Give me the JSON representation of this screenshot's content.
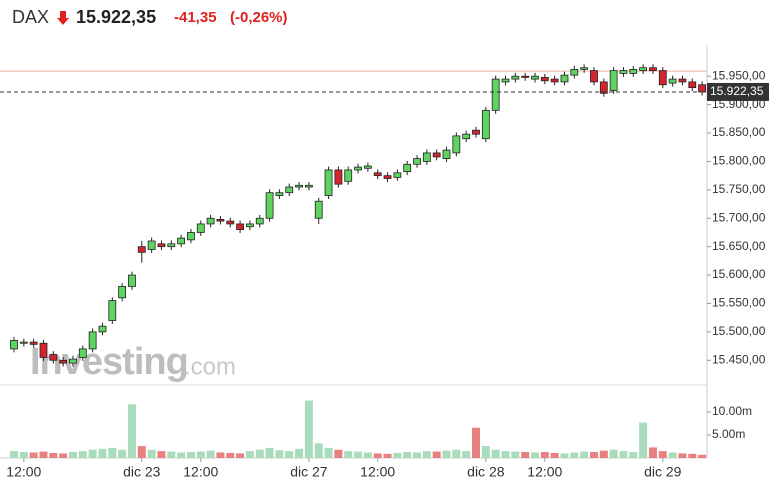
{
  "chart_data": {
    "type": "candlestick",
    "title": "DAX",
    "last_price": {
      "value": 15922.35,
      "label": "15.922,35"
    },
    "change": {
      "value": -41.35,
      "label": "-41,35"
    },
    "change_pct": {
      "value": -0.26,
      "label": "(-0,26%)"
    },
    "watermark": [
      "Investing",
      ".com"
    ],
    "categories": [
      null,
      "12:00",
      null,
      null,
      null,
      null,
      null,
      null,
      null,
      null,
      null,
      null,
      null,
      "dic 23",
      null,
      null,
      null,
      null,
      null,
      "12:00",
      null,
      null,
      null,
      null,
      null,
      null,
      null,
      null,
      null,
      null,
      "dic 27",
      null,
      null,
      null,
      null,
      null,
      null,
      "12:00",
      null,
      null,
      null,
      null,
      null,
      null,
      null,
      null,
      null,
      null,
      "dic 28",
      null,
      null,
      null,
      null,
      null,
      "12:00",
      null,
      null,
      null,
      null,
      null,
      null,
      null,
      null,
      null,
      null,
      null,
      "dic 29",
      null,
      null,
      null,
      null
    ],
    "open": [
      15470,
      15480,
      15482,
      15480,
      15460,
      15450,
      15445,
      15455,
      15470,
      15500,
      15520,
      15560,
      15580,
      15650,
      15645,
      15655,
      15650,
      15655,
      15662,
      15675,
      15690,
      15698,
      15695,
      15690,
      15685,
      15690,
      15700,
      15740,
      15745,
      15755,
      15755,
      15700,
      15740,
      15785,
      15765,
      15785,
      15788,
      15780,
      15775,
      15772,
      15782,
      15795,
      15800,
      15815,
      15805,
      15815,
      15840,
      15855,
      15840,
      15890,
      15940,
      15945,
      15950,
      15945,
      15948,
      15945,
      15940,
      15952,
      15962,
      15960,
      15940,
      15925,
      15955,
      15955,
      15960,
      15965,
      15960,
      15938,
      15945,
      15940,
      15935
    ],
    "high": [
      15491,
      15488,
      15488,
      15486,
      15466,
      15456,
      15458,
      15476,
      15506,
      15516,
      15561,
      15586,
      15606,
      15660,
      15666,
      15661,
      15661,
      15671,
      15681,
      15696,
      15706,
      15704,
      15701,
      15696,
      15696,
      15706,
      15751,
      15751,
      15761,
      15764,
      15764,
      15736,
      15791,
      15791,
      15791,
      15796,
      15798,
      15786,
      15781,
      15786,
      15801,
      15811,
      15821,
      15821,
      15826,
      15851,
      15854,
      15861,
      15896,
      15951,
      15951,
      15956,
      15956,
      15956,
      15954,
      15951,
      15958,
      15968,
      15971,
      15966,
      15946,
      15966,
      15966,
      15968,
      15971,
      15971,
      15966,
      15951,
      15951,
      15946,
      15941
    ],
    "low": [
      15464,
      15474,
      15472,
      15449,
      15444,
      15439,
      15439,
      15449,
      15464,
      15494,
      15514,
      15554,
      15574,
      15622,
      15639,
      15644,
      15644,
      15649,
      15656,
      15669,
      15684,
      15689,
      15684,
      15674,
      15679,
      15684,
      15694,
      15734,
      15739,
      15749,
      15749,
      15690,
      15734,
      15754,
      15759,
      15779,
      15782,
      15769,
      15764,
      15766,
      15776,
      15789,
      15794,
      15802,
      15799,
      15809,
      15834,
      15842,
      15834,
      15884,
      15934,
      15939,
      15942,
      15939,
      15936,
      15934,
      15934,
      15946,
      15956,
      15934,
      15914,
      15919,
      15949,
      15949,
      15954,
      15954,
      15929,
      15932,
      15934,
      15924,
      15916
    ],
    "close": [
      15485,
      15482,
      15478,
      15455,
      15450,
      15445,
      15452,
      15470,
      15500,
      15510,
      15555,
      15580,
      15600,
      15640,
      15660,
      15650,
      15655,
      15665,
      15675,
      15690,
      15700,
      15695,
      15690,
      15680,
      15690,
      15700,
      15745,
      15745,
      15755,
      15758,
      15758,
      15730,
      15785,
      15760,
      15785,
      15790,
      15792,
      15775,
      15770,
      15780,
      15795,
      15805,
      15815,
      15808,
      15820,
      15845,
      15848,
      15848,
      15890,
      15945,
      15945,
      15950,
      15948,
      15950,
      15942,
      15940,
      15952,
      15962,
      15965,
      15940,
      15920,
      15960,
      15960,
      15962,
      15965,
      15960,
      15935,
      15945,
      15940,
      15930,
      15922.35
    ],
    "volume": [
      1500000,
      1300000,
      1200000,
      1400000,
      1100000,
      1000000,
      1300000,
      1500000,
      1800000,
      2000000,
      2200000,
      1800000,
      11700000,
      2600000,
      1800000,
      1500000,
      1400000,
      1200000,
      1300000,
      1400000,
      1600000,
      1200000,
      1100000,
      1000000,
      1500000,
      1800000,
      2200000,
      1700000,
      1500000,
      2000000,
      12500000,
      3200000,
      2200000,
      1800000,
      1500000,
      1400000,
      1200000,
      1000000,
      900000,
      1100000,
      1300000,
      1200000,
      1500000,
      1400000,
      1600000,
      1800000,
      1500000,
      6600000,
      2600000,
      1800000,
      1500000,
      1400000,
      1300000,
      1200000,
      1300000,
      1100000,
      1000000,
      1200000,
      1400000,
      1300000,
      1600000,
      1800000,
      1500000,
      1300000,
      7700000,
      2300000,
      1500000,
      1200000,
      1000000,
      900000,
      700000
    ],
    "up_color": "#5fd35f",
    "down_color": "#d4252f",
    "volume_up_color": "#a9dcbd",
    "volume_down_color": "#e98080",
    "high_line": 15959,
    "ylim": [
      15410,
      16005
    ],
    "yticks": [
      {
        "value": 15450,
        "label": "15.450,00"
      },
      {
        "value": 15500,
        "label": "15.500,00"
      },
      {
        "value": 15550,
        "label": "15.550,00"
      },
      {
        "value": 15600,
        "label": "15.600,00"
      },
      {
        "value": 15650,
        "label": "15.650,00"
      },
      {
        "value": 15700,
        "label": "15.700,00"
      },
      {
        "value": 15750,
        "label": "15.750,00"
      },
      {
        "value": 15800,
        "label": "15.800,00"
      },
      {
        "value": 15850,
        "label": "15.850,00"
      },
      {
        "value": 15900,
        "label": "15.900,00"
      },
      {
        "value": 15950,
        "label": "15.950,00"
      }
    ],
    "y2lim": [
      0,
      14800000
    ],
    "y2ticks": [
      {
        "value": 5000000,
        "label": "5.00m"
      },
      {
        "value": 10000000,
        "label": "10.00m"
      }
    ]
  }
}
